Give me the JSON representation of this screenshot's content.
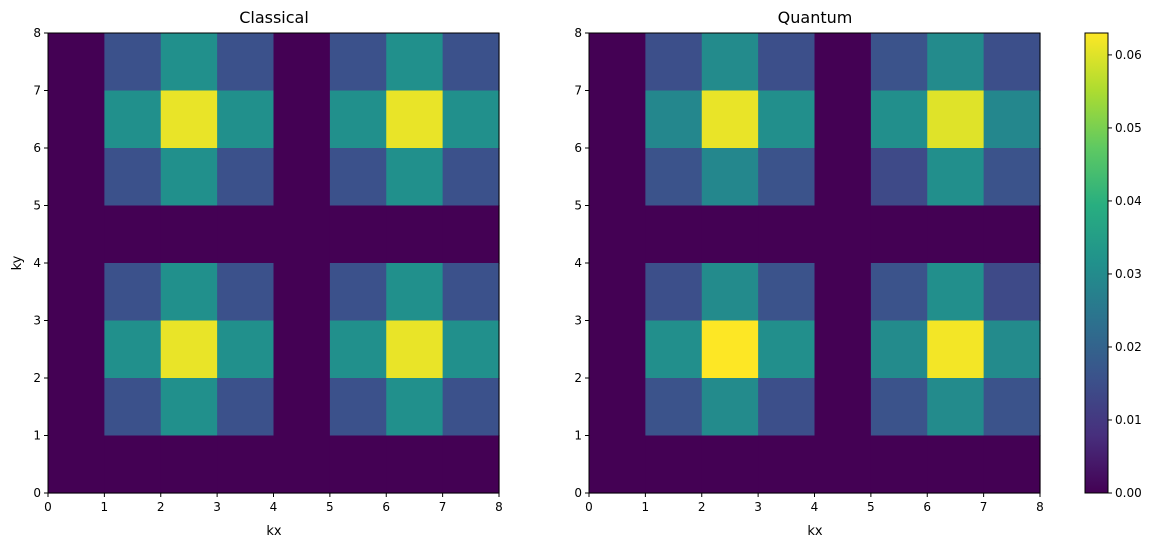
{
  "chart_data": [
    {
      "type": "heatmap",
      "title": "Classical",
      "xlabel": "kx",
      "ylabel": "ky",
      "xlim": [
        0,
        8
      ],
      "ylim": [
        0,
        8
      ],
      "x_ticks": [
        "0",
        "1",
        "2",
        "3",
        "4",
        "5",
        "6",
        "7",
        "8"
      ],
      "y_ticks": [
        "0",
        "1",
        "2",
        "3",
        "4",
        "5",
        "6",
        "7",
        "8"
      ],
      "colormap": "viridis",
      "value_range": [
        0,
        0.063
      ],
      "rows_top_to_bottom": [
        [
          0,
          0.0156,
          0.0312,
          0.0156,
          0,
          0.0156,
          0.0312,
          0.0156
        ],
        [
          0,
          0.0312,
          0.061,
          0.0312,
          0,
          0.0312,
          0.061,
          0.0312
        ],
        [
          0,
          0.0156,
          0.0312,
          0.0156,
          0,
          0.0156,
          0.0312,
          0.0156
        ],
        [
          0,
          0,
          0,
          0,
          0,
          0,
          0,
          0
        ],
        [
          0,
          0.0156,
          0.0312,
          0.0156,
          0,
          0.0156,
          0.0312,
          0.0156
        ],
        [
          0,
          0.0312,
          0.061,
          0.0312,
          0,
          0.0312,
          0.061,
          0.0312
        ],
        [
          0,
          0.0156,
          0.0312,
          0.0156,
          0,
          0.0156,
          0.0312,
          0.0156
        ],
        [
          0,
          0,
          0,
          0,
          0,
          0,
          0,
          0
        ]
      ]
    },
    {
      "type": "heatmap",
      "title": "Quantum",
      "xlabel": "kx",
      "ylabel": "",
      "xlim": [
        0,
        8
      ],
      "ylim": [
        0,
        8
      ],
      "x_ticks": [
        "0",
        "1",
        "2",
        "3",
        "4",
        "5",
        "6",
        "7",
        "8"
      ],
      "y_ticks": [
        "0",
        "1",
        "2",
        "3",
        "4",
        "5",
        "6",
        "7",
        "8"
      ],
      "colormap": "viridis",
      "value_range": [
        0,
        0.063
      ],
      "rows_top_to_bottom": [
        [
          0,
          0.015,
          0.03,
          0.015,
          0,
          0.016,
          0.03,
          0.015
        ],
        [
          0,
          0.029,
          0.061,
          0.031,
          0,
          0.031,
          0.06,
          0.029
        ],
        [
          0,
          0.016,
          0.029,
          0.016,
          0,
          0.014,
          0.031,
          0.016
        ],
        [
          0,
          0,
          0,
          0,
          0,
          0,
          0,
          0
        ],
        [
          0,
          0.015,
          0.03,
          0.016,
          0,
          0.016,
          0.031,
          0.014
        ],
        [
          0,
          0.031,
          0.063,
          0.031,
          0,
          0.03,
          0.062,
          0.03
        ],
        [
          0,
          0.016,
          0.03,
          0.015,
          0,
          0.016,
          0.03,
          0.016
        ],
        [
          0,
          0,
          0,
          0,
          0,
          0,
          0,
          0
        ]
      ]
    }
  ],
  "colorbar": {
    "min": 0,
    "max": 0.063,
    "ticks": [
      "0.00",
      "0.01",
      "0.02",
      "0.03",
      "0.04",
      "0.05",
      "0.06"
    ],
    "tick_values": [
      0,
      0.01,
      0.02,
      0.03,
      0.04,
      0.05,
      0.06
    ]
  }
}
